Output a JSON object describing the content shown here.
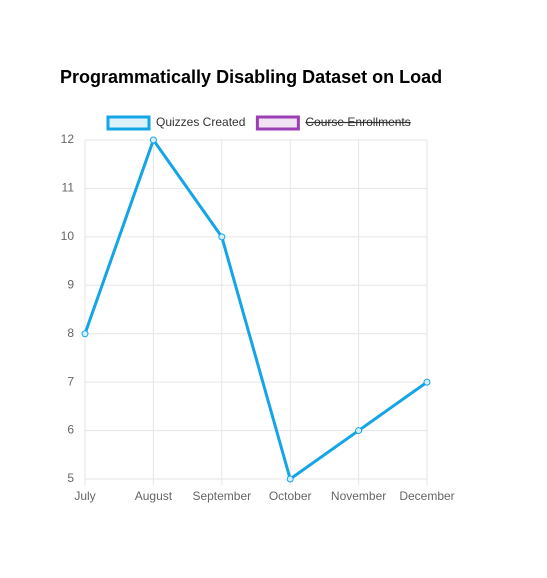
{
  "chart_data": {
    "type": "line",
    "title": "Programmatically Disabling Dataset on Load",
    "categories": [
      "July",
      "August",
      "September",
      "October",
      "November",
      "December"
    ],
    "series": [
      {
        "name": "Quizzes Created",
        "color": "#14a5e6",
        "values": [
          8,
          12,
          10,
          5,
          6,
          7
        ]
      },
      {
        "name": "Course Enrollments",
        "color": "#9b3fb5",
        "hidden": true
      }
    ],
    "ylim": [
      5,
      12
    ],
    "yticks": [
      5,
      6,
      7,
      8,
      9,
      10,
      11,
      12
    ],
    "grid": true
  }
}
